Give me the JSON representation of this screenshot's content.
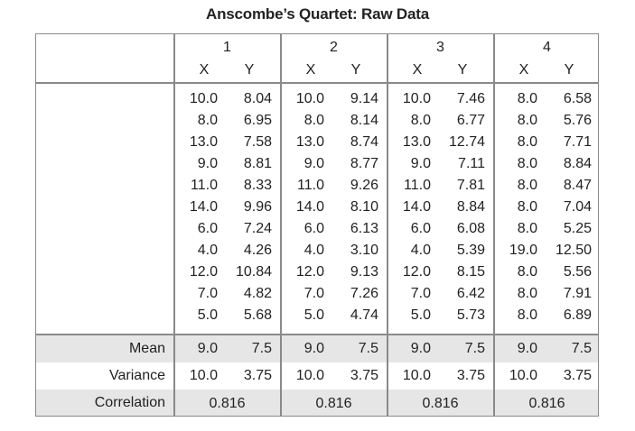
{
  "title": "Anscombe’s Quartet: Raw Data",
  "datasets": [
    {
      "id": "1",
      "x_header": "X",
      "y_header": "Y",
      "x": [
        "10.0",
        "8.0",
        "13.0",
        "9.0",
        "11.0",
        "14.0",
        "6.0",
        "4.0",
        "12.0",
        "7.0",
        "5.0"
      ],
      "y": [
        "8.04",
        "6.95",
        "7.58",
        "8.81",
        "8.33",
        "9.96",
        "7.24",
        "4.26",
        "10.84",
        "4.82",
        "5.68"
      ],
      "mean_x": "9.0",
      "mean_y": "7.5",
      "var_x": "10.0",
      "var_y": "3.75",
      "correlation": "0.816"
    },
    {
      "id": "2",
      "x_header": "X",
      "y_header": "Y",
      "x": [
        "10.0",
        "8.0",
        "13.0",
        "9.0",
        "11.0",
        "14.0",
        "6.0",
        "4.0",
        "12.0",
        "7.0",
        "5.0"
      ],
      "y": [
        "9.14",
        "8.14",
        "8.74",
        "8.77",
        "9.26",
        "8.10",
        "6.13",
        "3.10",
        "9.13",
        "7.26",
        "4.74"
      ],
      "mean_x": "9.0",
      "mean_y": "7.5",
      "var_x": "10.0",
      "var_y": "3.75",
      "correlation": "0.816"
    },
    {
      "id": "3",
      "x_header": "X",
      "y_header": "Y",
      "x": [
        "10.0",
        "8.0",
        "13.0",
        "9.0",
        "11.0",
        "14.0",
        "6.0",
        "4.0",
        "12.0",
        "7.0",
        "5.0"
      ],
      "y": [
        "7.46",
        "6.77",
        "12.74",
        "7.11",
        "7.81",
        "8.84",
        "6.08",
        "5.39",
        "8.15",
        "6.42",
        "5.73"
      ],
      "mean_x": "9.0",
      "mean_y": "7.5",
      "var_x": "10.0",
      "var_y": "3.75",
      "correlation": "0.816"
    },
    {
      "id": "4",
      "x_header": "X",
      "y_header": "Y",
      "x": [
        "8.0",
        "8.0",
        "8.0",
        "8.0",
        "8.0",
        "8.0",
        "8.0",
        "19.0",
        "8.0",
        "8.0",
        "8.0"
      ],
      "y": [
        "6.58",
        "5.76",
        "7.71",
        "8.84",
        "8.47",
        "7.04",
        "5.25",
        "12.50",
        "5.56",
        "7.91",
        "6.89"
      ],
      "mean_x": "9.0",
      "mean_y": "7.5",
      "var_x": "10.0",
      "var_y": "3.75",
      "correlation": "0.816"
    }
  ],
  "row_labels": {
    "mean": "Mean",
    "variance": "Variance",
    "correlation": "Correlation"
  }
}
